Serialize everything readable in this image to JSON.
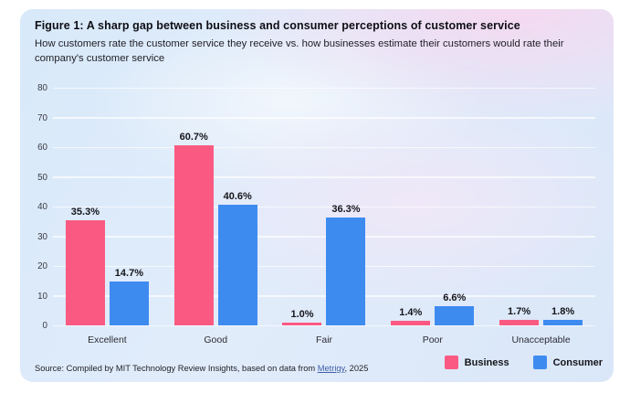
{
  "figure": {
    "title": "Figure 1: A sharp gap between business and consumer perceptions of customer service",
    "subtitle": "How customers rate the customer service they receive vs. how businesses estimate their customers would rate their company's customer service",
    "source": {
      "prefix": "Source: Compiled by MIT Technology Review Insights, based on data from ",
      "link_text": "Metrigy",
      "suffix": ", 2025"
    }
  },
  "legend": [
    {
      "label": "Business",
      "color": "#FA5A82"
    },
    {
      "label": "Consumer",
      "color": "#3E8BF0"
    }
  ],
  "colors": {
    "business": "#FA5A82",
    "consumer": "#3E8BF0",
    "link": "#3E5EA8",
    "gridline": "rgba(255,255,255,0.68)"
  },
  "chart_data": {
    "type": "bar",
    "categories": [
      "Excellent",
      "Good",
      "Fair",
      "Poor",
      "Unacceptable"
    ],
    "series": [
      {
        "name": "Business",
        "color": "#FA5A82",
        "values": [
          35.3,
          60.7,
          1.0,
          1.4,
          1.7
        ],
        "labels": [
          "35.3%",
          "60.7%",
          "1.0%",
          "1.4%",
          "1.7%"
        ]
      },
      {
        "name": "Consumer",
        "color": "#3E8BF0",
        "values": [
          14.7,
          40.6,
          36.3,
          6.6,
          1.8
        ],
        "labels": [
          "14.7%",
          "40.6%",
          "36.3%",
          "6.6%",
          "1.8%"
        ]
      }
    ],
    "title": "Figure 1: A sharp gap between business and consumer perceptions of customer service",
    "xlabel": "",
    "ylabel": "",
    "ylim": [
      0,
      80
    ],
    "yticks": [
      0,
      10,
      20,
      30,
      40,
      50,
      60,
      70,
      80
    ],
    "grid": true,
    "legend_position": "bottom-right"
  }
}
